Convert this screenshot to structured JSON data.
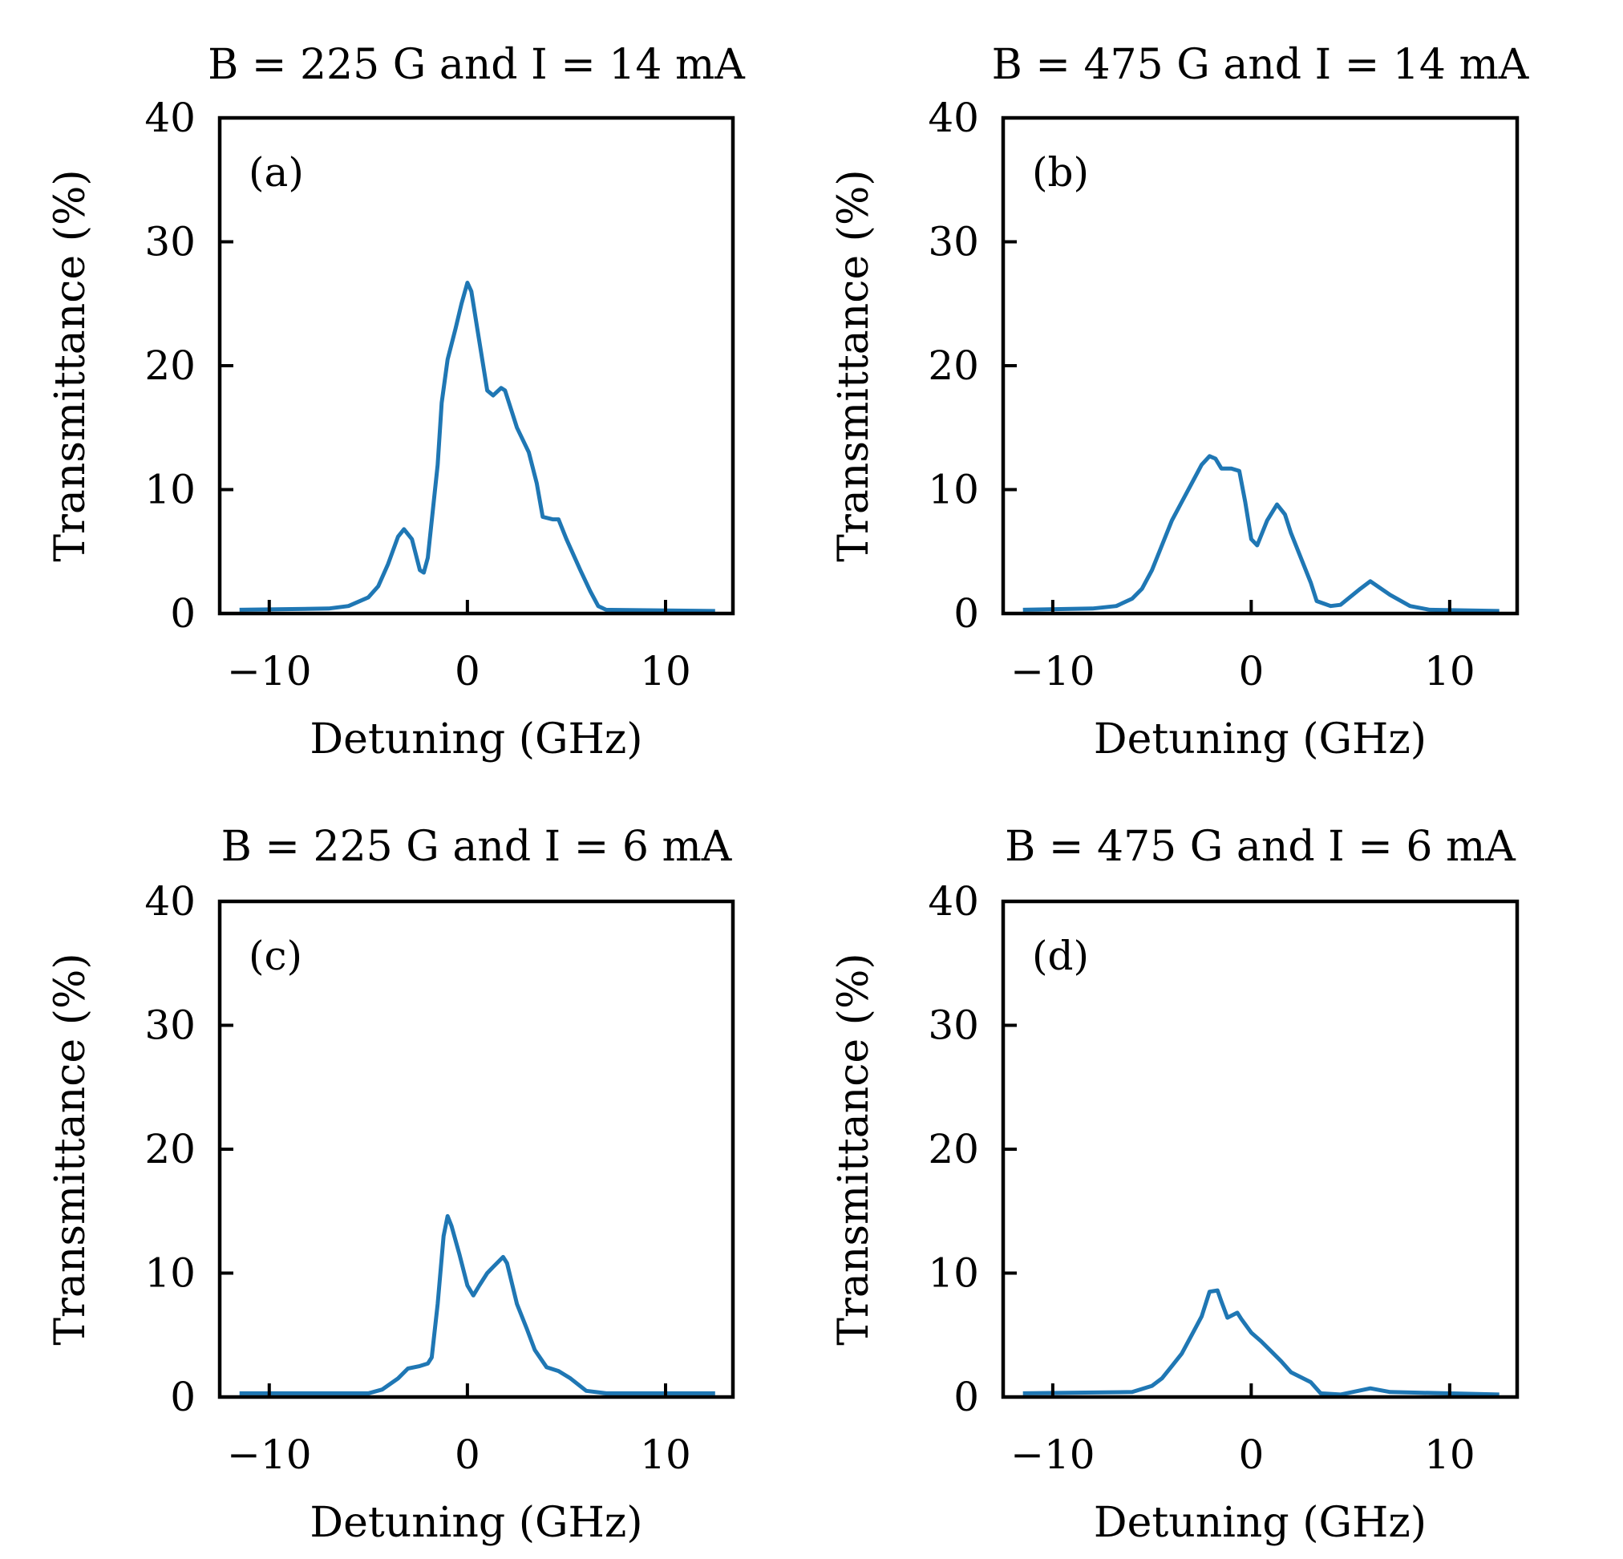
{
  "colors": {
    "line": "#1f77b4",
    "axes": "#000000"
  },
  "chart_data": [
    {
      "type": "line",
      "panel_label": "(a)",
      "title": "B = 225 G and I = 14 mA",
      "xlabel": "Detuning (GHz)",
      "ylabel": "Transmittance (%)",
      "xlim": [
        -12.5,
        13.4
      ],
      "ylim": [
        0,
        40
      ],
      "xticks": [
        -10,
        0,
        10
      ],
      "xtick_labels": [
        "−10",
        "0",
        "10"
      ],
      "yticks": [
        0,
        10,
        20,
        30,
        40
      ],
      "ytick_labels": [
        "0",
        "10",
        "20",
        "30",
        "40"
      ],
      "x": [
        -11.5,
        -7,
        -6,
        -5,
        -4.5,
        -4,
        -3.5,
        -3.2,
        -2.8,
        -2.4,
        -2.2,
        -2,
        -1.5,
        -1.3,
        -1,
        -0.6,
        -0.3,
        0,
        0.2,
        0.5,
        1,
        1.3,
        1.7,
        1.9,
        2.5,
        3.1,
        3.5,
        3.8,
        4.3,
        4.6,
        5,
        5.7,
        6.2,
        6.6,
        7,
        12.5
      ],
      "y": [
        0.3,
        0.4,
        0.6,
        1.3,
        2.2,
        4,
        6.2,
        6.8,
        6,
        3.5,
        3.3,
        4.5,
        12,
        17,
        20.5,
        23,
        25,
        26.7,
        26,
        23,
        18,
        17.6,
        18.2,
        18,
        15,
        13,
        10.5,
        7.8,
        7.6,
        7.6,
        6,
        3.5,
        1.8,
        0.6,
        0.3,
        0.2
      ]
    },
    {
      "type": "line",
      "panel_label": "(b)",
      "title": "B = 475 G and I = 14 mA",
      "xlabel": "Detuning (GHz)",
      "ylabel": "Transmittance (%)",
      "xlim": [
        -12.5,
        13.4
      ],
      "ylim": [
        0,
        40
      ],
      "xticks": [
        -10,
        0,
        10
      ],
      "xtick_labels": [
        "−10",
        "0",
        "10"
      ],
      "yticks": [
        0,
        10,
        20,
        30,
        40
      ],
      "ytick_labels": [
        "0",
        "10",
        "20",
        "30",
        "40"
      ],
      "x": [
        -11.5,
        -8,
        -6.8,
        -6,
        -5.5,
        -5,
        -4.5,
        -4,
        -3.5,
        -3,
        -2.5,
        -2.1,
        -1.8,
        -1.5,
        -1,
        -0.6,
        -0.3,
        0,
        0.3,
        0.8,
        1.3,
        1.7,
        2,
        3,
        3.3,
        4,
        4.5,
        5.5,
        6,
        7,
        8,
        9,
        12.5
      ],
      "y": [
        0.3,
        0.4,
        0.6,
        1.2,
        2,
        3.5,
        5.5,
        7.5,
        9,
        10.5,
        12,
        12.7,
        12.5,
        11.7,
        11.7,
        11.5,
        9,
        6,
        5.5,
        7.5,
        8.8,
        8,
        6.5,
        2.5,
        1,
        0.6,
        0.7,
        2,
        2.6,
        1.5,
        0.6,
        0.3,
        0.2
      ]
    },
    {
      "type": "line",
      "panel_label": "(c)",
      "title": "B = 225 G and I = 6 mA",
      "xlabel": "Detuning (GHz)",
      "ylabel": "Transmittance (%)",
      "xlim": [
        -12.5,
        13.4
      ],
      "ylim": [
        0,
        40
      ],
      "xticks": [
        -10,
        0,
        10
      ],
      "xtick_labels": [
        "−10",
        "0",
        "10"
      ],
      "yticks": [
        0,
        10,
        20,
        30,
        40
      ],
      "ytick_labels": [
        "0",
        "10",
        "20",
        "30",
        "40"
      ],
      "x": [
        -11.5,
        -5,
        -4.3,
        -3.5,
        -3,
        -2.4,
        -2,
        -1.8,
        -1.5,
        -1.2,
        -1,
        -0.8,
        -0.4,
        0,
        0.3,
        0.6,
        1,
        1.3,
        1.8,
        2,
        2.5,
        3,
        3.4,
        4,
        4.6,
        5.2,
        6,
        7,
        12.5
      ],
      "y": [
        0.3,
        0.3,
        0.6,
        1.5,
        2.3,
        2.5,
        2.7,
        3.2,
        7.5,
        13,
        14.6,
        13.8,
        11.5,
        9,
        8.2,
        9,
        10,
        10.5,
        11.3,
        10.8,
        7.5,
        5.5,
        3.8,
        2.4,
        2.1,
        1.5,
        0.5,
        0.3,
        0.3
      ]
    },
    {
      "type": "line",
      "panel_label": "(d)",
      "title": "B = 475 G and I = 6 mA",
      "xlabel": "Detuning (GHz)",
      "ylabel": "Transmittance (%)",
      "xlim": [
        -12.5,
        13.4
      ],
      "ylim": [
        0,
        40
      ],
      "xticks": [
        -10,
        0,
        10
      ],
      "xtick_labels": [
        "−10",
        "0",
        "10"
      ],
      "yticks": [
        0,
        10,
        20,
        30,
        40
      ],
      "ytick_labels": [
        "0",
        "10",
        "20",
        "30",
        "40"
      ],
      "x": [
        -11.5,
        -6,
        -5,
        -4.5,
        -4,
        -3.5,
        -3,
        -2.5,
        -2.1,
        -1.7,
        -1.5,
        -1.2,
        -0.7,
        -0.5,
        0,
        0.5,
        1,
        1.5,
        2,
        3,
        3.5,
        4.5,
        6,
        7,
        12.5
      ],
      "y": [
        0.3,
        0.4,
        0.9,
        1.5,
        2.5,
        3.5,
        5,
        6.5,
        8.5,
        8.6,
        7.7,
        6.4,
        6.8,
        6.3,
        5.2,
        4.5,
        3.7,
        2.9,
        2,
        1.2,
        0.3,
        0.2,
        0.7,
        0.4,
        0.2
      ]
    }
  ]
}
